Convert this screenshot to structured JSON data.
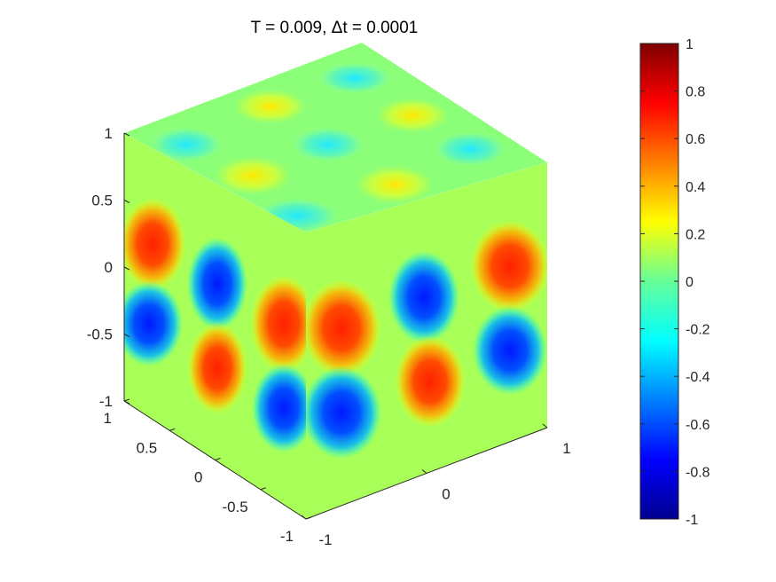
{
  "chart_data": {
    "type": "heatmap",
    "title": "T = 0.009,  Δt = 0.0001",
    "axes": {
      "z_ticks": [
        "1",
        "0.5",
        "0",
        "-0.5",
        "-1"
      ],
      "y_ticks": [
        "1",
        "0.5",
        "0",
        "-0.5",
        "-1"
      ],
      "x_ticks": [
        "-1",
        "0",
        "1"
      ],
      "x_range": [
        -1,
        1
      ],
      "y_range": [
        -1,
        1
      ],
      "z_range": [
        -1,
        1
      ]
    },
    "colorbar": {
      "range": [
        -1,
        1
      ],
      "ticks": [
        "1",
        "0.8",
        "0.6",
        "0.4",
        "0.2",
        "0",
        "-0.2",
        "-0.4",
        "-0.6",
        "-0.8",
        "-1"
      ],
      "colormap": "jet"
    },
    "surface": "cube faces colored by scalar field u(x,y,z) at T = 0.009",
    "value_range": [
      -1,
      1
    ],
    "grid": false,
    "legend": "none"
  }
}
